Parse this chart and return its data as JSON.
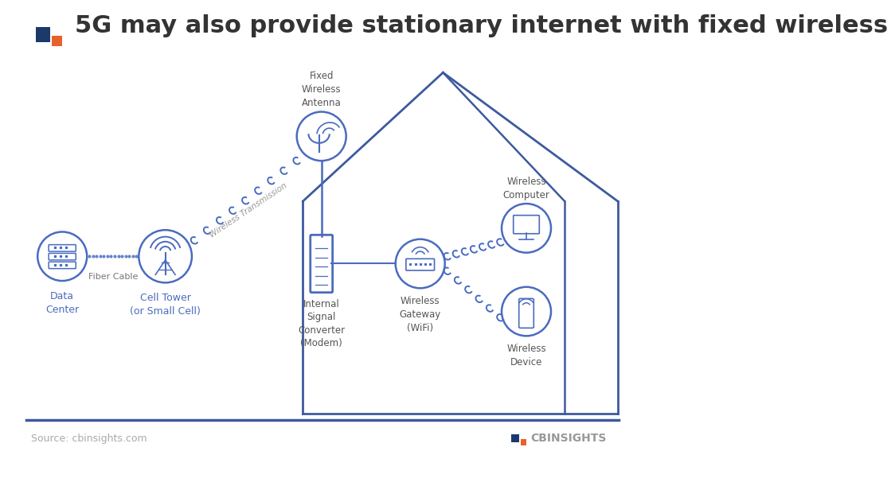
{
  "title": "5G may also provide stationary internet with fixed wireless",
  "title_color": "#333333",
  "title_fontsize": 22,
  "bg_color": "#ffffff",
  "main_blue": "#3d5a9e",
  "icon_blue": "#4a6bbf",
  "source_text": "Source: cbinsights.com",
  "logo_text": "CBINSIGHTS",
  "labels": {
    "data_center": "Data\nCenter",
    "fiber_cable": "Fiber Cable",
    "cell_tower": "Cell Tower\n(or Small Cell)",
    "wireless_transmission": "Wireless Transmission",
    "fixed_wireless_antenna": "Fixed\nWireless\nAntenna",
    "internal_signal": "Internal\nSignal\nConverter\n(Modem)",
    "wireless_gateway": "Wireless\nGateway\n(WiFi)",
    "wireless_computer": "Wireless\nComputer",
    "wireless_device": "Wireless\nDevice"
  },
  "logo_icon_color1": "#1b3a6b",
  "logo_icon_color2": "#e8612c"
}
